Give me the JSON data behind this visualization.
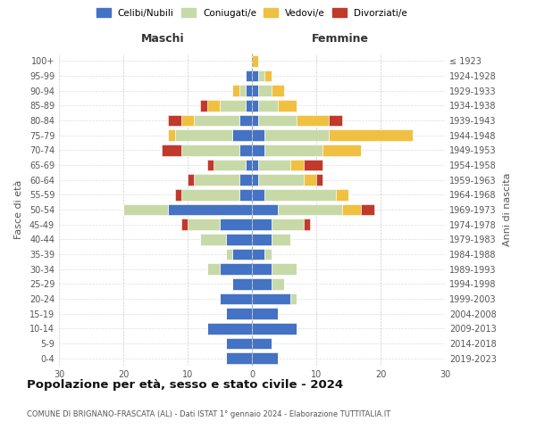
{
  "age_groups": [
    "100+",
    "95-99",
    "90-94",
    "85-89",
    "80-84",
    "75-79",
    "70-74",
    "65-69",
    "60-64",
    "55-59",
    "50-54",
    "45-49",
    "40-44",
    "35-39",
    "30-34",
    "25-29",
    "20-24",
    "15-19",
    "10-14",
    "5-9",
    "0-4"
  ],
  "birth_years": [
    "≤ 1923",
    "1924-1928",
    "1929-1933",
    "1934-1938",
    "1939-1943",
    "1944-1948",
    "1949-1953",
    "1954-1958",
    "1959-1963",
    "1964-1968",
    "1969-1973",
    "1974-1978",
    "1979-1983",
    "1984-1988",
    "1989-1993",
    "1994-1998",
    "1999-2003",
    "2004-2008",
    "2009-2013",
    "2014-2018",
    "2019-2023"
  ],
  "colors": {
    "celibe": "#4472C4",
    "coniugato": "#c8d9a8",
    "vedovo": "#f0c040",
    "divorziato": "#c0392b"
  },
  "maschi": {
    "celibe": [
      0,
      1,
      1,
      1,
      2,
      3,
      2,
      1,
      2,
      2,
      13,
      5,
      4,
      3,
      5,
      3,
      5,
      4,
      7,
      4,
      4
    ],
    "coniugato": [
      0,
      0,
      1,
      4,
      7,
      9,
      9,
      5,
      7,
      9,
      7,
      5,
      4,
      1,
      2,
      0,
      0,
      0,
      0,
      0,
      0
    ],
    "vedovo": [
      0,
      0,
      1,
      2,
      2,
      1,
      0,
      0,
      0,
      0,
      0,
      0,
      0,
      0,
      0,
      0,
      0,
      0,
      0,
      0,
      0
    ],
    "divorziato": [
      0,
      0,
      0,
      1,
      2,
      0,
      3,
      1,
      1,
      1,
      0,
      1,
      0,
      0,
      0,
      0,
      0,
      0,
      0,
      0,
      0
    ]
  },
  "femmine": {
    "celibe": [
      0,
      1,
      1,
      1,
      1,
      2,
      2,
      1,
      1,
      2,
      4,
      3,
      3,
      2,
      3,
      3,
      6,
      4,
      7,
      3,
      4
    ],
    "coniugato": [
      0,
      1,
      2,
      3,
      6,
      10,
      9,
      5,
      7,
      11,
      10,
      5,
      3,
      1,
      4,
      2,
      1,
      0,
      0,
      0,
      0
    ],
    "vedovo": [
      1,
      1,
      2,
      3,
      5,
      13,
      6,
      2,
      2,
      2,
      3,
      0,
      0,
      0,
      0,
      0,
      0,
      0,
      0,
      0,
      0
    ],
    "divorziato": [
      0,
      0,
      0,
      0,
      2,
      0,
      0,
      3,
      1,
      0,
      2,
      1,
      0,
      0,
      0,
      0,
      0,
      0,
      0,
      0,
      0
    ]
  },
  "xlim": 30,
  "title": "Popolazione per età, sesso e stato civile - 2024",
  "subtitle": "COMUNE DI BRIGNANO-FRASCATA (AL) - Dati ISTAT 1° gennaio 2024 - Elaborazione TUTTITALIA.IT",
  "ylabel_left": "Fasce di età",
  "ylabel_right": "Anni di nascita",
  "xlabel_left": "Maschi",
  "xlabel_right": "Femmine"
}
